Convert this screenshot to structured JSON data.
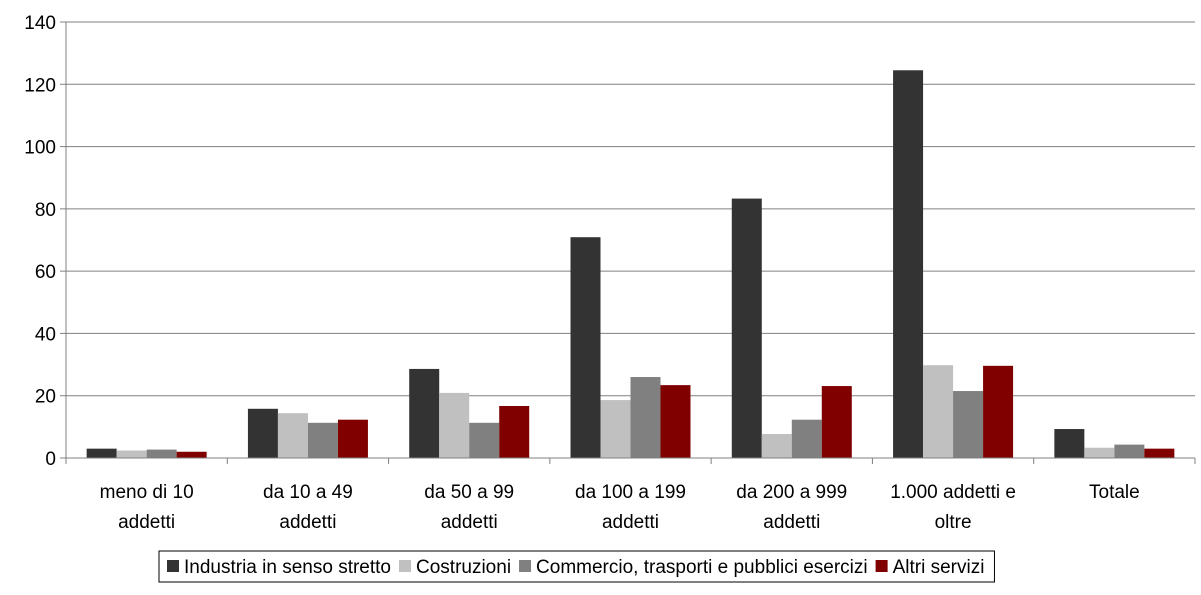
{
  "chart_data": {
    "type": "bar",
    "categories": [
      [
        "meno di 10",
        "addetti"
      ],
      [
        "da 10 a 49",
        "addetti"
      ],
      [
        "da 50 a 99",
        "addetti"
      ],
      [
        "da 100 a 199",
        "addetti"
      ],
      [
        "da 200 a 999",
        "addetti"
      ],
      [
        "1.000 addetti e",
        "oltre"
      ],
      [
        "Totale"
      ]
    ],
    "series": [
      {
        "name": "Industria in senso stretto",
        "color": "#333333",
        "values": [
          3.0,
          15.8,
          28.6,
          70.9,
          83.3,
          124.5,
          9.3
        ]
      },
      {
        "name": "Costruzioni",
        "color": "#c0c0c0",
        "values": [
          2.4,
          14.4,
          20.9,
          18.6,
          7.7,
          29.8,
          3.3
        ]
      },
      {
        "name": "Commercio, trasporti e pubblici esercizi",
        "color": "#808080",
        "values": [
          2.7,
          11.3,
          11.3,
          26.0,
          12.3,
          21.5,
          4.3
        ]
      },
      {
        "name": "Altri servizi",
        "color": "#800000",
        "values": [
          2.0,
          12.3,
          16.7,
          23.4,
          23.1,
          29.6,
          3.0
        ]
      }
    ],
    "yticks": [
      0,
      20,
      40,
      60,
      80,
      100,
      120,
      140
    ],
    "ylim": [
      0,
      140
    ],
    "grid": true,
    "legend_position": "bottom"
  }
}
